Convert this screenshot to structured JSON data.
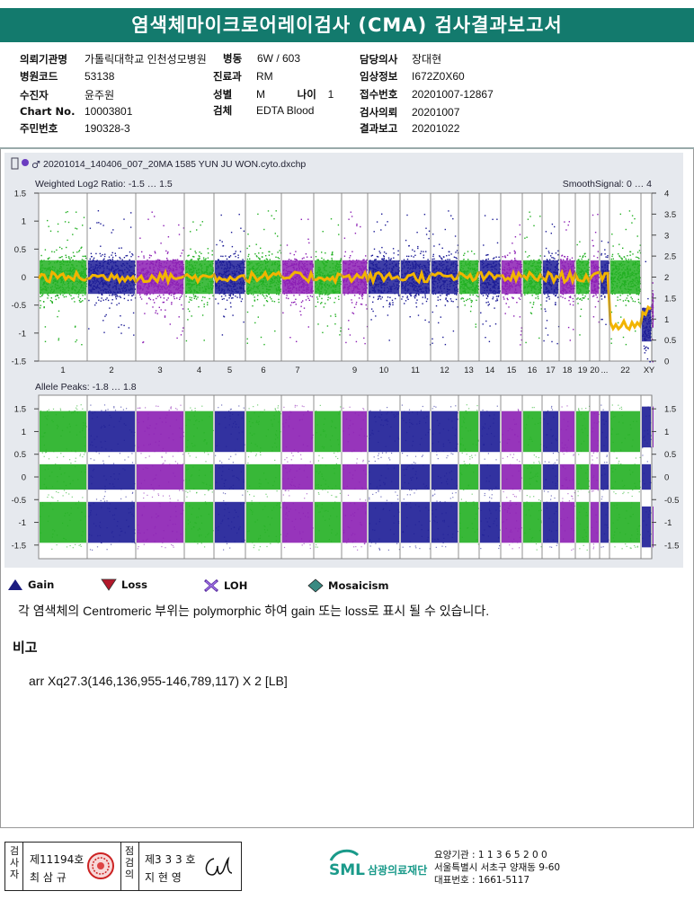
{
  "report": {
    "title": "염색체마이크로어레이검사 (CMA) 검사결과보고서"
  },
  "patient": {
    "institution_label": "의뢰기관명",
    "institution_value": "가톨릭대학교 인천성모병원",
    "ward_label": "병동",
    "ward_value": "6W / 603",
    "doctor_label": "담당의사",
    "doctor_value": "장대현",
    "hospital_code_label": "병원코드",
    "hospital_code_value": "53138",
    "department_label": "진료과",
    "department_value": "RM",
    "clinical_info_label": "임상정보",
    "clinical_info_value": "I672Z0X60",
    "patient_name_label": "수진자",
    "patient_name_value": "윤주원",
    "sex_label": "성별",
    "sex_value": "M",
    "age_label": "나이",
    "age_value": "1",
    "receipt_no_label": "접수번호",
    "receipt_no_value": "20201007-12867",
    "chart_no_label": "Chart No.",
    "chart_no_value": "10003801",
    "specimen_label": "검체",
    "specimen_value": "EDTA Blood",
    "test_request_label": "검사의뢰",
    "test_request_value": "20201007",
    "resident_no_label": "주민번호",
    "resident_no_value": "190328-3",
    "result_report_label": "결과보고",
    "result_report_value": "20201022"
  },
  "plot": {
    "filename": "20201014_140406_007_20MA 1585 YUN JU WON.cyto.dxchp",
    "top_panel_label": "Weighted Log2 Ratio: -1.5 … 1.5",
    "smooth_label": "SmoothSignal: 0 … 4",
    "bottom_panel_label": "Allele Peaks: -1.8 … 1.8",
    "top_left_ticks": [
      "1.5",
      "1",
      "0.5",
      "0",
      "-0.5",
      "-1",
      "-1.5"
    ],
    "top_right_ticks": [
      "4",
      "3.5",
      "3",
      "2.5",
      "2",
      "1.5",
      "1",
      "0.5",
      "0"
    ],
    "bottom_left_ticks": [
      "1.5",
      "1",
      "0.5",
      "0",
      "-0.5",
      "-1",
      "-1.5"
    ],
    "bottom_right_ticks": [
      "1.5",
      "1",
      "0.5",
      "0",
      "-0.5",
      "-1",
      "-1.5"
    ],
    "chromosomes": [
      "1",
      "2",
      "3",
      "4",
      "5",
      "6",
      "7",
      "8",
      "9",
      "10",
      "11",
      "12",
      "13",
      "14",
      "15",
      "16",
      "17",
      "18",
      "19",
      "20",
      "21",
      "22",
      "X",
      "Y"
    ],
    "chromosome_labels": [
      "1",
      "2",
      "3",
      "4",
      "5",
      "6",
      "7",
      "",
      "9",
      "10",
      "11",
      "12",
      "13",
      "14",
      "15",
      "16",
      "17",
      "18",
      "19",
      "20",
      "...",
      "22",
      "X",
      "Y"
    ],
    "colors": {
      "green": "#22b022",
      "navy": "#1c1c96",
      "purple": "#8c1fb4",
      "orange": "#f2b400"
    }
  },
  "legend": {
    "gain": "Gain",
    "loss": "Loss",
    "loh": "LOH",
    "mosaicism": "Mosaicism",
    "gain_color": "#1c1c80",
    "loss_color": "#b3182a",
    "loh_color": "#7b3fb5",
    "mosaic_color": "#3a8a82"
  },
  "note": "각 염색체의 Centromeric 부위는 polymorphic 하여 gain 또는 loss로 표시 될 수 있습니다.",
  "remarks": {
    "title": "비고",
    "text": "arr Xq27.3(146,136,955-146,789,117) X 2 [LB]"
  },
  "signatures": {
    "inspector_label": "검사자",
    "inspector_license": "제11194호",
    "inspector_name": "최 삼 규",
    "reviewer_label": "점검의",
    "reviewer_license": "제3 3 3 호",
    "reviewer_name": "지 현 영"
  },
  "organization": {
    "logo_text": "SML",
    "name": "삼광의료재단",
    "care_no": "요양기관 : 1 1 3 6 5 2 0 0",
    "address": "서울특별시 서초구 양재동 9-60",
    "phone": "대표번호 : 1661-5117"
  }
}
